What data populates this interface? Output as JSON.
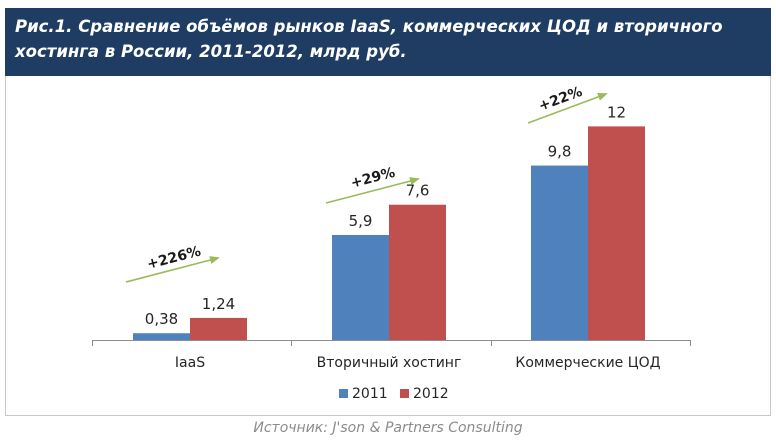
{
  "title": "Рис.1. Сравнение объёмов рынков IaaS, коммерческих ЦОД и вторичного хостинга в России, 2011-2012, млрд руб.",
  "source": "Источник: J'son & Partners Consulting",
  "colors": {
    "title_bg": "#1f3d63",
    "series_2011": "#4f81bd",
    "series_2012": "#c0504d",
    "arrow": "#9bbb59"
  },
  "chart_data": {
    "type": "bar",
    "categories": [
      "IaaS",
      "Вторичный хостинг",
      "Коммерческие ЦОД"
    ],
    "series": [
      {
        "name": "2011",
        "values": [
          0.38,
          5.9,
          9.8
        ],
        "labels": [
          "0,38",
          "5,9",
          "9,8"
        ]
      },
      {
        "name": "2012",
        "values": [
          1.24,
          7.6,
          12
        ],
        "labels": [
          "1,24",
          "7,6",
          "12"
        ]
      }
    ],
    "growth_labels": [
      "+226%",
      "+29%",
      "+22%"
    ],
    "legend_position": "bottom",
    "grid": false,
    "ylim": [
      0,
      12.5
    ]
  }
}
